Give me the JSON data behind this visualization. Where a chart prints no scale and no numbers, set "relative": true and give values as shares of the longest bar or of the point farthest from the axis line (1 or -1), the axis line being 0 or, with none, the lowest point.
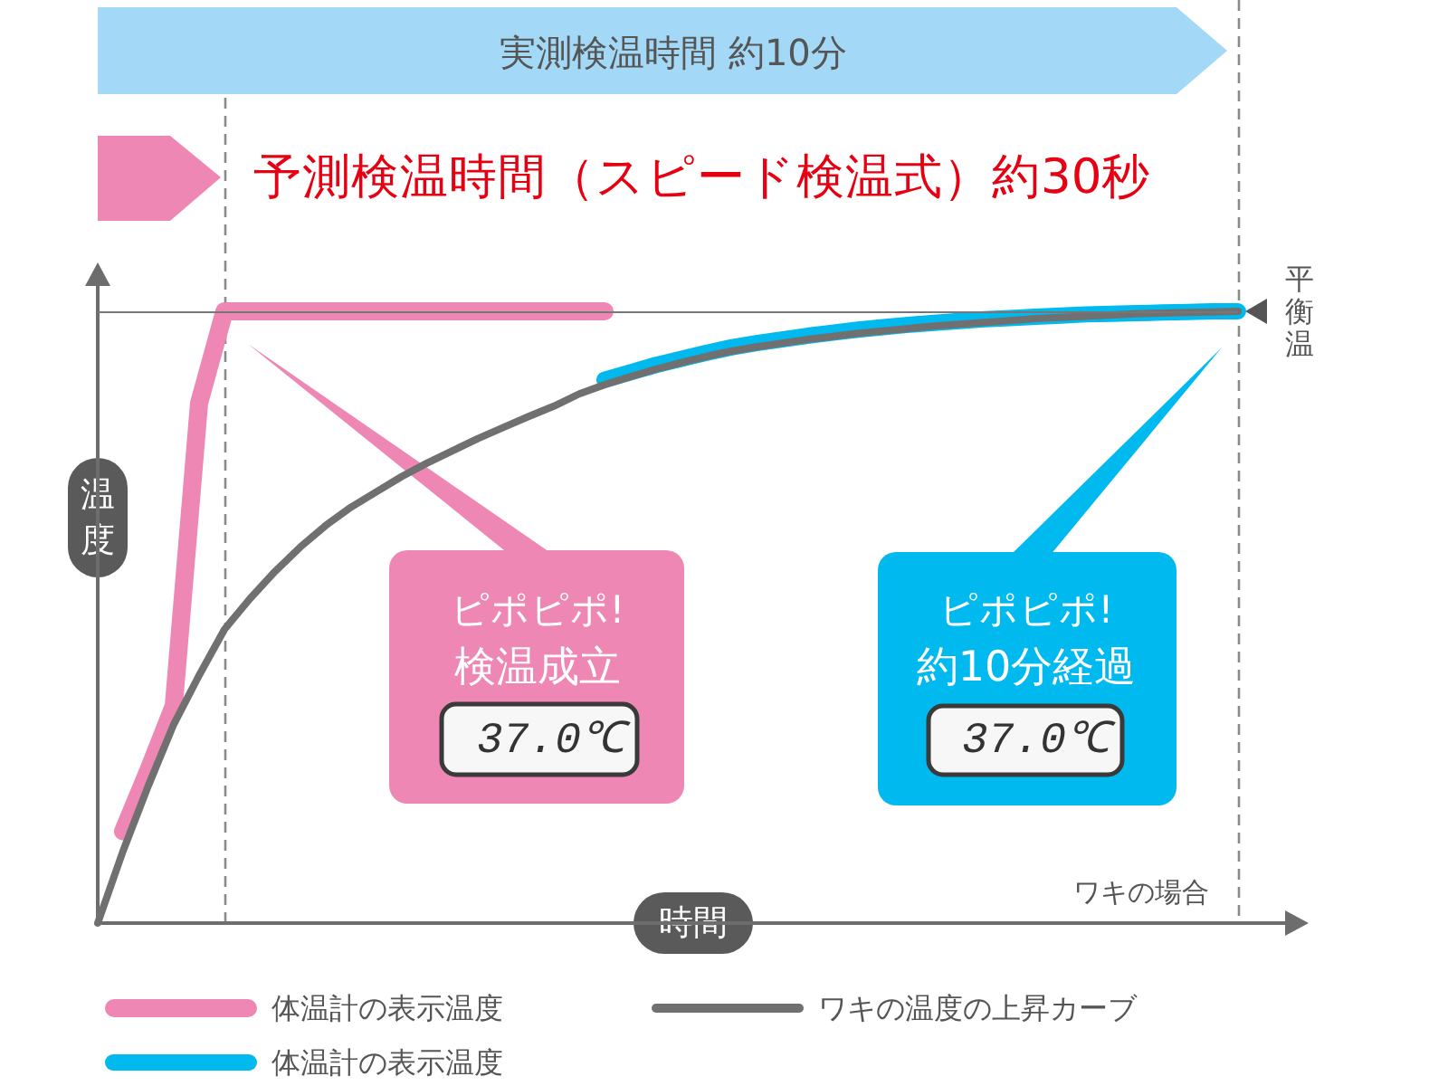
{
  "chart_data": {
    "type": "line",
    "relative": true,
    "categories": [
      null,
      null,
      null,
      null,
      null,
      null,
      null,
      null,
      null,
      null,
      null,
      null,
      null,
      null,
      null,
      null,
      null,
      null,
      null,
      null,
      null,
      null,
      null,
      null,
      null,
      null,
      null,
      null,
      null,
      null,
      null,
      null,
      null,
      null,
      null,
      null,
      null,
      null,
      null,
      null,
      null,
      null,
      null,
      null,
      null,
      null,
      null,
      null
    ],
    "series": [
      {
        "name": "体温計の表示温度",
        "color": "#ee87b4",
        "values": [
          null,
          0.15,
          0.25,
          0.355,
          0.85,
          1,
          1,
          1,
          1,
          1,
          1,
          1,
          1,
          1,
          1,
          1,
          1,
          1,
          1,
          1,
          1,
          null,
          null,
          null,
          null,
          null,
          null,
          null,
          null,
          null,
          null,
          null,
          null,
          null,
          null,
          null,
          null,
          null,
          null,
          null,
          null,
          null,
          null,
          null,
          null,
          null,
          null,
          null
        ]
      },
      {
        "name": "体温計の表示温度",
        "color": "#00b9ef",
        "values": [
          null,
          null,
          null,
          null,
          null,
          null,
          null,
          null,
          null,
          null,
          null,
          null,
          null,
          null,
          null,
          null,
          null,
          null,
          null,
          null,
          0.888,
          0.9,
          0.912,
          0.922,
          0.932,
          0.941,
          0.948,
          0.954,
          0.96,
          0.965,
          0.97,
          0.974,
          0.978,
          0.981,
          0.984,
          0.987,
          0.989,
          0.991,
          0.993,
          0.995,
          0.996,
          0.997,
          0.998,
          0.999,
          1,
          1,
          null,
          null
        ]
      },
      {
        "name": "ワキの温度の上昇カーブ",
        "color": "#707070",
        "values": [
          0,
          0.118,
          0.225,
          0.325,
          0.405,
          0.48,
          0.53,
          0.575,
          0.615,
          0.65,
          0.68,
          0.705,
          0.73,
          0.752,
          0.772,
          0.792,
          0.81,
          0.828,
          0.845,
          0.865,
          0.88,
          0.893,
          0.905,
          0.916,
          0.926,
          0.935,
          0.942,
          0.948,
          0.954,
          0.959,
          0.964,
          0.968,
          0.972,
          0.976,
          0.979,
          0.982,
          0.985,
          0.988,
          0.99,
          0.992,
          0.994,
          0.996,
          0.997,
          0.998,
          0.999,
          1,
          null,
          null
        ]
      }
    ],
    "xlabel": "時間",
    "ylabel": "温度",
    "ref_lines": [
      {
        "axis": "y",
        "value": 1,
        "label": "平衡温",
        "color": "#777777"
      }
    ],
    "annotations": [
      "実測検温時間 約10分",
      "予測検温時間（スピード検温式）約30秒",
      "ピポピポ!",
      "検温成立",
      "37.0℃",
      "ピポピポ!",
      "約10分経過",
      "37.0℃",
      "ワキの場合"
    ],
    "legend": "bottom",
    "marker": "none",
    "grid": false
  }
}
